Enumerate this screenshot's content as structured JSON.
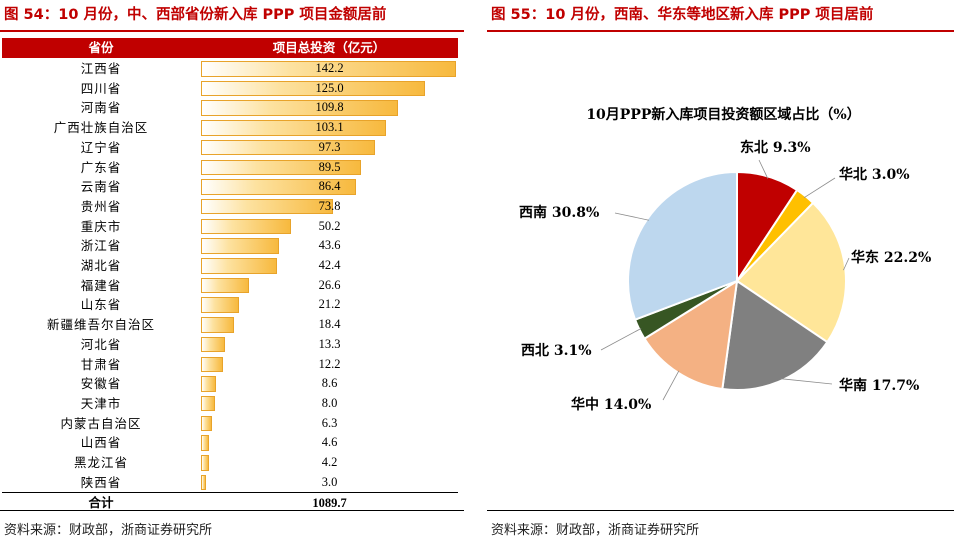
{
  "left_panel": {
    "title": "图 54：10 月份，中、西部省份新入库 PPP 项目金额居前",
    "source": "资料来源：财政部，浙商证券研究所"
  },
  "right_panel": {
    "title": "图 55：10 月份，西南、华东等地区新入库 PPP 项目居前",
    "source": "资料来源：财政部，浙商证券研究所"
  },
  "chart_data": [
    {
      "type": "bar",
      "orientation": "horizontal",
      "column_headers": [
        "省份",
        "项目总投资（亿元）"
      ],
      "categories": [
        "江西省",
        "四川省",
        "河南省",
        "广西壮族自治区",
        "辽宁省",
        "广东省",
        "云南省",
        "贵州省",
        "重庆市",
        "浙江省",
        "湖北省",
        "福建省",
        "山东省",
        "新疆维吾尔自治区",
        "河北省",
        "甘肃省",
        "安徽省",
        "天津市",
        "内蒙古自治区",
        "山西省",
        "黑龙江省",
        "陕西省"
      ],
      "values": [
        142.2,
        125.0,
        109.8,
        103.1,
        97.3,
        89.5,
        86.4,
        73.8,
        50.2,
        43.6,
        42.4,
        26.6,
        21.2,
        18.4,
        13.3,
        12.2,
        8.6,
        8.0,
        6.3,
        4.6,
        4.2,
        3.0
      ],
      "value_labels": [
        "142.2",
        "125.0",
        "109.8",
        "103.1",
        "97.3",
        "89.5",
        "86.4",
        "73.8",
        "50.2",
        "43.6",
        "42.4",
        "26.6",
        "21.2",
        "18.4",
        "13.3",
        "12.2",
        "8.6",
        "8.0",
        "6.3",
        "4.6",
        "4.2",
        "3.0"
      ],
      "xlim": [
        0,
        142.2
      ],
      "total_label": "合计",
      "total_value": "1089.7",
      "colors": {
        "header_bg": "#c00000",
        "bar_fill": "#f7b93e",
        "bar_border": "#e8a32a"
      }
    },
    {
      "type": "pie",
      "title": "10月PPP新入库项目投资额区域占比（%）",
      "slices": [
        {
          "name": "东北",
          "value": 9.3,
          "label": "东北 9.3%",
          "color": "#c00000"
        },
        {
          "name": "华北",
          "value": 3.0,
          "label": "华北 3.0%",
          "color": "#ffc000"
        },
        {
          "name": "华东",
          "value": 22.2,
          "label": "华东 22.2%",
          "color": "#ffe699"
        },
        {
          "name": "华南",
          "value": 17.7,
          "label": "华南 17.7%",
          "color": "#808080"
        },
        {
          "name": "华中",
          "value": 14.0,
          "label": "华中 14.0%",
          "color": "#f4b183"
        },
        {
          "name": "西北",
          "value": 3.1,
          "label": "西北 3.1%",
          "color": "#375623"
        },
        {
          "name": "西南",
          "value": 30.8,
          "label": "西南 30.8%",
          "color": "#bdd7ee"
        }
      ]
    }
  ]
}
